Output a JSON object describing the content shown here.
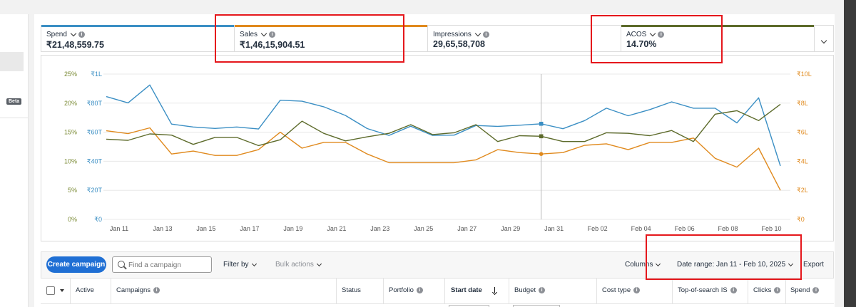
{
  "metrics": [
    {
      "name": "Spend",
      "value": "₹21,48,559.75",
      "color": "#3b8fc4"
    },
    {
      "name": "Sales",
      "value": "₹1,46,15,904.51",
      "color": "#e08a1e"
    },
    {
      "name": "Impressions",
      "value": "29,65,58,708",
      "color": ""
    },
    {
      "name": "ACOS",
      "value": "14.70%",
      "color": "#5d6b2b"
    }
  ],
  "left_panel": {
    "badge": "Beta"
  },
  "chart_data": {
    "type": "line",
    "x_ticks": [
      "Jan 11",
      "Jan 13",
      "Jan 15",
      "Jan 17",
      "Jan 19",
      "Jan 21",
      "Jan 23",
      "Jan 25",
      "Jan 27",
      "Jan 29",
      "Jan 31",
      "Feb 02",
      "Feb 04",
      "Feb 06",
      "Feb 08",
      "Feb 10"
    ],
    "left_axis_acos": [
      "0%",
      "5%",
      "10%",
      "15%",
      "20%",
      "25%"
    ],
    "left_axis_spend": [
      "₹0",
      "₹20T",
      "₹40T",
      "₹60T",
      "₹80T",
      "₹1L"
    ],
    "right_axis_sales": [
      "₹0",
      "₹2L",
      "₹4L",
      "₹6L",
      "₹8L",
      "₹10L"
    ],
    "ylim_acos": [
      0,
      25
    ],
    "ylim_spend_thousands": [
      0,
      100
    ],
    "ylim_sales_lakh": [
      0,
      10
    ],
    "hover_index": 20,
    "series": [
      {
        "name": "Spend",
        "color": "#3b8fc4",
        "unit": "T",
        "values": [
          84.5,
          80.2,
          92.5,
          65.6,
          63.6,
          62.6,
          63.6,
          62.2,
          82.0,
          81.3,
          77.5,
          71.5,
          62.5,
          57.8,
          64.1,
          57.8,
          58.0,
          64.6,
          64.0,
          64.8,
          65.8,
          62.4,
          68.0,
          76.5,
          71.3,
          75.6,
          80.9,
          76.5,
          76.5,
          66.4,
          83.7,
          36.8
        ]
      },
      {
        "name": "Sales",
        "color": "#e08a1e",
        "unit": "L",
        "values": [
          6.1,
          5.9,
          6.3,
          4.5,
          4.7,
          4.4,
          4.4,
          4.8,
          6.0,
          4.9,
          5.3,
          5.3,
          4.5,
          3.9,
          3.9,
          3.9,
          3.9,
          4.1,
          4.8,
          4.6,
          4.5,
          4.6,
          5.1,
          5.2,
          4.8,
          5.3,
          5.3,
          5.6,
          4.2,
          3.6,
          4.9,
          2.0
        ]
      },
      {
        "name": "ACOS",
        "color": "#5d6b2b",
        "unit": "%",
        "values": [
          13.8,
          13.6,
          14.7,
          14.5,
          12.9,
          14.1,
          14.1,
          12.7,
          13.7,
          16.9,
          14.8,
          13.5,
          14.2,
          14.8,
          16.3,
          14.6,
          14.9,
          16.3,
          13.4,
          14.4,
          14.3,
          13.4,
          13.4,
          14.9,
          14.8,
          14.4,
          15.3,
          13.4,
          18.1,
          18.7,
          17.0,
          19.8
        ]
      }
    ]
  },
  "toolbar": {
    "create_label": "Create campaign",
    "search_placeholder": "Find a campaign",
    "filter_label": "Filter by",
    "bulk_label": "Bulk actions",
    "columns_label": "Columns",
    "date_range_label": "Date range: Jan 11 - Feb 10, 2025",
    "export_label": "Export"
  },
  "table": {
    "headers": [
      "Active",
      "Campaigns",
      "Status",
      "Portfolio",
      "Start date",
      "Budget",
      "Cost type",
      "Top-of-search IS",
      "Clicks",
      "Spend"
    ]
  },
  "colors": {
    "annotation": "#e5171c",
    "accent": "#1f6fd4"
  }
}
